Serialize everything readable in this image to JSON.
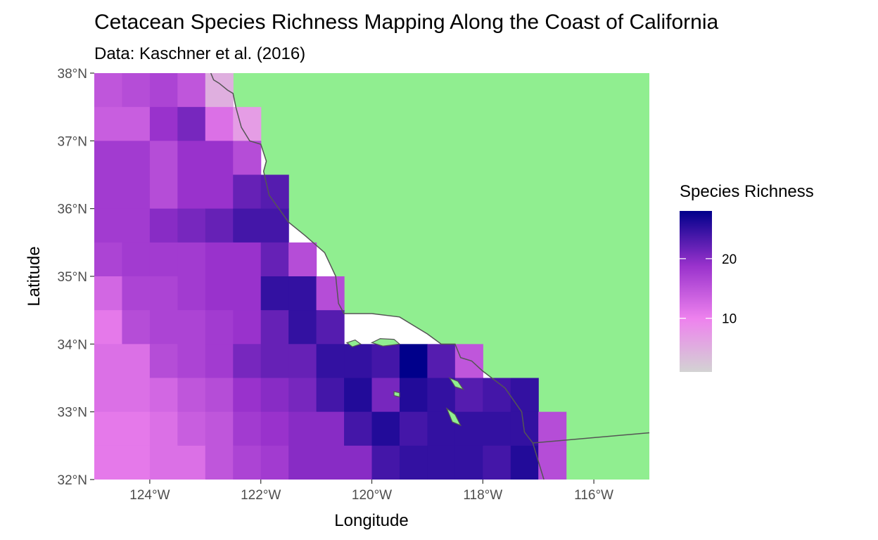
{
  "chart_data": {
    "type": "heatmap",
    "title": "Cetacean Species Richness Mapping Along the Coast of California",
    "subtitle": "Data: Kaschner et al. (2016)",
    "xlabel": "Longitude",
    "ylabel": "Latitude",
    "xlim": [
      -125,
      -115
    ],
    "ylim": [
      32,
      38
    ],
    "x_ticks": [
      {
        "value": -124,
        "label": "124°W"
      },
      {
        "value": -122,
        "label": "122°W"
      },
      {
        "value": -120,
        "label": "120°W"
      },
      {
        "value": -118,
        "label": "118°W"
      },
      {
        "value": -116,
        "label": "116°W"
      }
    ],
    "y_ticks": [
      {
        "value": 32,
        "label": "32°N"
      },
      {
        "value": 33,
        "label": "33°N"
      },
      {
        "value": 34,
        "label": "34°N"
      },
      {
        "value": 35,
        "label": "35°N"
      },
      {
        "value": 36,
        "label": "36°N"
      },
      {
        "value": 37,
        "label": "37°N"
      },
      {
        "value": 38,
        "label": "38°N"
      }
    ],
    "cell_size_deg": 0.5,
    "grid_origin": {
      "lon": -125,
      "lat": 38
    },
    "legend": {
      "title": "Species Richness",
      "position": "right",
      "range": [
        1,
        28
      ],
      "breaks": [
        {
          "value": 10,
          "label": "10"
        },
        {
          "value": 20,
          "label": "20"
        }
      ],
      "gradient": [
        "#d3d3d3",
        "#ee82ee",
        "#9932cc",
        "#00008b"
      ]
    },
    "land_color": "#90ee90",
    "coast_color": "#555555",
    "background_color": "#ffffff",
    "values_rows_north_to_south": [
      [
        15,
        16,
        17,
        15,
        5,
        null,
        null,
        null,
        null,
        null,
        null,
        null,
        null,
        null,
        null,
        null,
        null,
        null,
        null,
        null
      ],
      [
        14,
        14,
        19,
        21,
        12,
        7,
        null,
        null,
        null,
        null,
        null,
        null,
        null,
        null,
        null,
        null,
        null,
        null,
        null,
        null
      ],
      [
        18,
        18,
        16,
        19,
        19,
        16,
        null,
        null,
        null,
        null,
        null,
        null,
        null,
        null,
        null,
        null,
        null,
        null,
        null,
        null
      ],
      [
        18,
        18,
        16,
        19,
        19,
        22,
        23,
        null,
        null,
        null,
        null,
        null,
        null,
        null,
        null,
        null,
        null,
        null,
        null,
        null
      ],
      [
        18,
        18,
        20,
        21,
        22,
        24,
        24,
        null,
        null,
        null,
        null,
        null,
        null,
        null,
        null,
        null,
        null,
        null,
        null,
        null
      ],
      [
        17,
        18,
        18,
        18,
        19,
        19,
        22,
        16,
        null,
        null,
        null,
        null,
        null,
        null,
        null,
        null,
        null,
        null,
        null,
        null
      ],
      [
        13,
        17,
        17,
        18,
        19,
        19,
        25,
        25,
        16,
        null,
        null,
        null,
        null,
        null,
        null,
        null,
        null,
        null,
        null,
        null
      ],
      [
        11,
        16,
        17,
        17,
        18,
        19,
        22,
        25,
        23,
        null,
        null,
        null,
        null,
        null,
        null,
        null,
        null,
        null,
        null,
        null
      ],
      [
        12,
        12,
        16,
        17,
        18,
        21,
        22,
        22,
        25,
        25,
        24,
        28,
        23,
        15,
        null,
        null,
        null,
        null,
        null,
        null
      ],
      [
        12,
        12,
        13,
        15,
        16,
        19,
        20,
        21,
        24,
        26,
        21,
        26,
        25,
        23,
        24,
        25,
        null,
        null,
        null,
        null
      ],
      [
        11,
        11,
        12,
        14,
        15,
        18,
        19,
        20,
        20,
        24,
        26,
        24,
        25,
        25,
        25,
        25,
        16,
        null,
        null,
        null
      ],
      [
        11,
        11,
        12,
        12,
        15,
        17,
        18,
        20,
        20,
        20,
        24,
        25,
        25,
        25,
        24,
        26,
        16,
        null,
        null,
        null
      ]
    ],
    "islands_lonlat": [
      [
        [
          -120.45,
          34.02
        ],
        [
          -120.3,
          34.06
        ],
        [
          -120.2,
          34.0
        ],
        [
          -120.35,
          33.96
        ]
      ],
      [
        [
          -120.0,
          34.02
        ],
        [
          -119.85,
          34.08
        ],
        [
          -119.6,
          34.07
        ],
        [
          -119.5,
          34.0
        ],
        [
          -119.8,
          33.97
        ]
      ],
      [
        [
          -118.6,
          33.5
        ],
        [
          -118.45,
          33.45
        ],
        [
          -118.35,
          33.33
        ],
        [
          -118.5,
          33.37
        ]
      ],
      [
        [
          -118.65,
          33.05
        ],
        [
          -118.5,
          32.96
        ],
        [
          -118.4,
          32.8
        ],
        [
          -118.55,
          32.85
        ]
      ],
      [
        [
          -119.6,
          33.3
        ],
        [
          -119.5,
          33.28
        ],
        [
          -119.5,
          33.22
        ],
        [
          -119.6,
          33.24
        ]
      ]
    ],
    "border_lonlat": [
      [
        -117.1,
        32.54
      ],
      [
        -115,
        32.69
      ]
    ],
    "coast_lonlat": [
      [
        -122.9,
        38
      ],
      [
        -122.85,
        37.9
      ],
      [
        -122.75,
        37.85
      ],
      [
        -122.6,
        37.75
      ],
      [
        -122.5,
        37.7
      ],
      [
        -122.45,
        37.5
      ],
      [
        -122.35,
        37.2
      ],
      [
        -122.2,
        37.0
      ],
      [
        -122.0,
        36.95
      ],
      [
        -121.9,
        36.7
      ],
      [
        -121.95,
        36.55
      ],
      [
        -121.85,
        36.2
      ],
      [
        -121.5,
        35.8
      ],
      [
        -121.2,
        35.6
      ],
      [
        -120.85,
        35.35
      ],
      [
        -120.65,
        35.0
      ],
      [
        -120.6,
        34.6
      ],
      [
        -120.5,
        34.45
      ],
      [
        -120.0,
        34.45
      ],
      [
        -119.5,
        34.4
      ],
      [
        -119.0,
        34.15
      ],
      [
        -118.75,
        34.0
      ],
      [
        -118.5,
        34.0
      ],
      [
        -118.4,
        33.8
      ],
      [
        -118.2,
        33.75
      ],
      [
        -118.0,
        33.6
      ],
      [
        -117.6,
        33.35
      ],
      [
        -117.3,
        33.0
      ],
      [
        -117.25,
        32.7
      ],
      [
        -117.1,
        32.54
      ],
      [
        -116.9,
        32.0
      ]
    ]
  }
}
